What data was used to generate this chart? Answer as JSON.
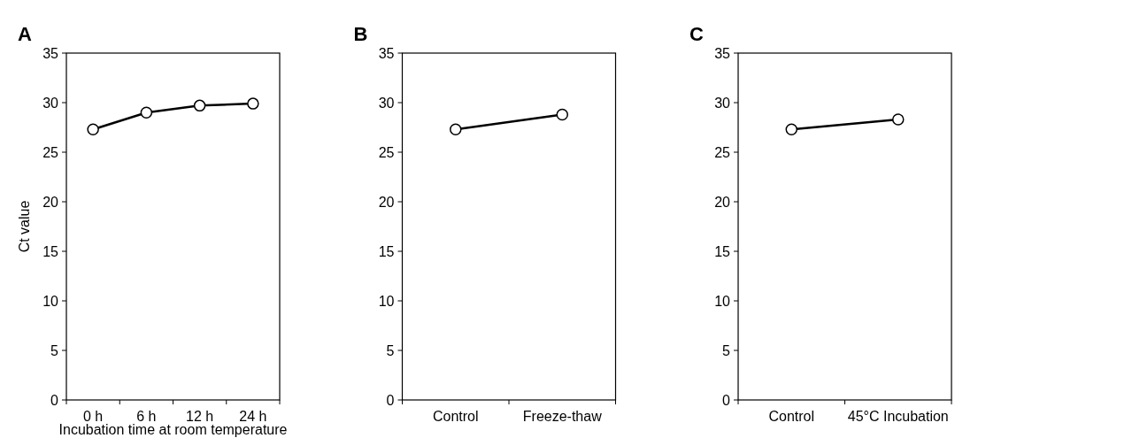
{
  "chart_data": [
    {
      "type": "line",
      "title": "A",
      "ylabel": "Ct value",
      "xlabel": "Incubation time at room temperature",
      "categories": [
        "0 h",
        "6 h",
        "12 h",
        "24 h"
      ],
      "series": [
        {
          "color": "#000000",
          "values": [
            27.3,
            29.0,
            29.7,
            29.9
          ]
        }
      ],
      "ylim": [
        0,
        35
      ],
      "yticks": [
        0,
        5,
        10,
        15,
        20,
        25,
        30,
        35
      ],
      "marker": "circle",
      "grid": false
    },
    {
      "type": "line",
      "title": "B",
      "categories": [
        "Control",
        "Freeze-thaw"
      ],
      "series": [
        {
          "color": "#000000",
          "values": [
            27.3,
            28.8
          ]
        }
      ],
      "ylim": [
        0,
        35
      ],
      "yticks": [
        0,
        5,
        10,
        15,
        20,
        25,
        30,
        35
      ],
      "marker": "circle",
      "grid": false
    },
    {
      "type": "line",
      "title": "C",
      "categories": [
        "Control",
        "45°C Incubation"
      ],
      "series": [
        {
          "color": "#000000",
          "values": [
            27.3,
            28.3
          ]
        }
      ],
      "ylim": [
        0,
        35
      ],
      "yticks": [
        0,
        5,
        10,
        15,
        20,
        25,
        30,
        35
      ],
      "marker": "circle",
      "grid": false
    }
  ]
}
